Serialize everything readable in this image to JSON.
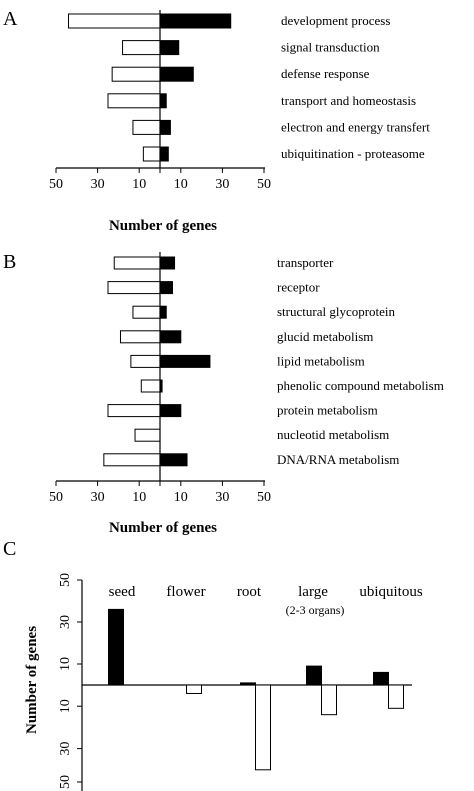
{
  "chart_data": [
    {
      "panel": "A",
      "type": "bar",
      "orientation": "horizontal-diverging",
      "categories": [
        "development process",
        "signal transduction",
        "defense response",
        "transport  and homeostasis",
        "electron and energy transfert",
        "ubiquitination - proteasome"
      ],
      "series": [
        {
          "color": "#ffffff",
          "side": "left",
          "values": [
            44,
            18,
            23,
            25,
            13,
            8
          ]
        },
        {
          "color": "#000000",
          "side": "right",
          "values": [
            34,
            9,
            16,
            3,
            5,
            4
          ]
        }
      ],
      "ticks": [
        "50",
        "30",
        "10",
        "10",
        "30",
        "50"
      ],
      "xlim": [
        -50,
        50
      ],
      "xlabel": "Number of genes"
    },
    {
      "panel": "B",
      "type": "bar",
      "orientation": "horizontal-diverging",
      "categories": [
        "transporter",
        "receptor",
        "structural glycoprotein",
        "glucid metabolism",
        "lipid metabolism",
        "phenolic compound metabolism",
        "protein metabolism",
        "nucleotid metabolism",
        "DNA/RNA metabolism"
      ],
      "series": [
        {
          "color": "#ffffff",
          "side": "left",
          "values": [
            22,
            25,
            13,
            19,
            14,
            9,
            25,
            12,
            27
          ]
        },
        {
          "color": "#000000",
          "side": "right",
          "values": [
            7,
            6,
            3,
            10,
            24,
            1,
            10,
            0,
            13
          ]
        }
      ],
      "ticks": [
        "50",
        "30",
        "10",
        "10",
        "30",
        "50"
      ],
      "xlim": [
        -50,
        50
      ],
      "xlabel": "Number of genes"
    },
    {
      "panel": "C",
      "type": "bar",
      "orientation": "vertical-diverging",
      "categories": [
        "seed",
        "flower",
        "root",
        "large",
        "ubiquitous"
      ],
      "category_notes": [
        "",
        "",
        "",
        "(2-3 organs)",
        ""
      ],
      "series": [
        {
          "color": "#000000",
          "side": "up",
          "values": [
            36,
            0,
            1,
            9,
            6
          ]
        },
        {
          "color": "#ffffff",
          "side": "down",
          "values": [
            0,
            4,
            40,
            14,
            11
          ]
        }
      ],
      "ticks": [
        "50",
        "30",
        "10",
        "10",
        "30",
        "50"
      ],
      "ylim": [
        -50,
        50
      ],
      "ylabel": "Number of genes"
    }
  ]
}
